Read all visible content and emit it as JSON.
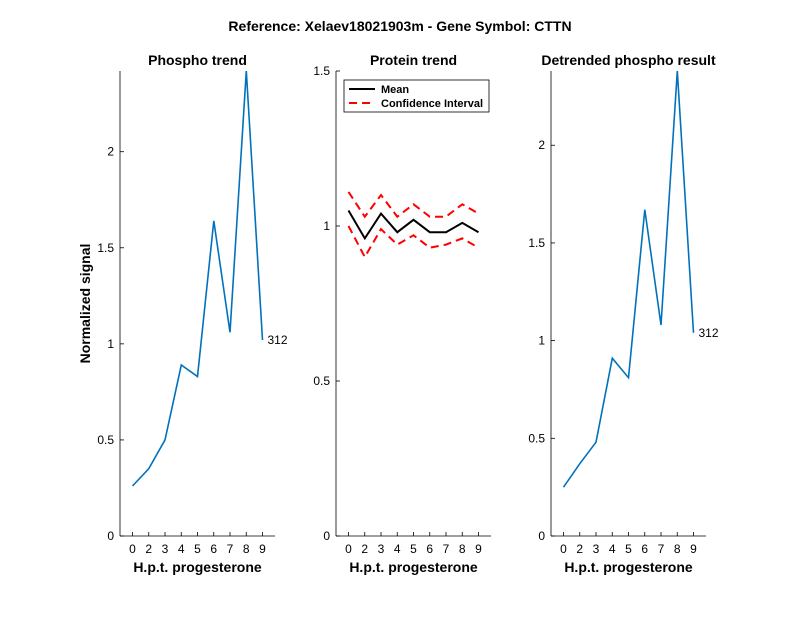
{
  "figure": {
    "suptitle": "Reference:  Xelaev18021903m - Gene Symbol:  CTTN"
  },
  "chart_data": [
    {
      "type": "line",
      "title": "Phospho trend",
      "xlabel": "H.p.t. progesterone",
      "ylabel": "Normalized signal",
      "categories": [
        "0",
        "2",
        "3",
        "4",
        "5",
        "6",
        "7",
        "8",
        "9"
      ],
      "ylim": [
        0,
        2.42
      ],
      "yticks": [
        0,
        0.5,
        1,
        1.5,
        2
      ],
      "ytick_labels": [
        "0",
        "0.5",
        "1",
        "1.5",
        "2"
      ],
      "series": [
        {
          "name": "312",
          "color": "#0072BD",
          "values": [
            0.26,
            0.35,
            0.5,
            0.89,
            0.83,
            1.64,
            1.06,
            2.42,
            1.02
          ]
        }
      ],
      "annotation": "312"
    },
    {
      "type": "line",
      "title": "Protein trend",
      "xlabel": "H.p.t. progesterone",
      "ylabel": "",
      "categories": [
        "0",
        "2",
        "3",
        "4",
        "5",
        "6",
        "7",
        "8",
        "9"
      ],
      "ylim": [
        0,
        1.5
      ],
      "yticks": [
        0,
        0.5,
        1,
        1.5
      ],
      "ytick_labels": [
        "0",
        "0.5",
        "1",
        "1.5"
      ],
      "series": [
        {
          "name": "Mean",
          "color": "#000000",
          "dash": "solid",
          "values": [
            1.05,
            0.96,
            1.04,
            0.98,
            1.02,
            0.98,
            0.98,
            1.01,
            0.98
          ]
        },
        {
          "name": "Confidence Interval",
          "color": "#FF0000",
          "dash": "dashed",
          "values": [
            1.11,
            1.03,
            1.1,
            1.03,
            1.07,
            1.03,
            1.03,
            1.07,
            1.04
          ]
        },
        {
          "name": "",
          "color": "#FF0000",
          "dash": "dashed",
          "values": [
            1.0,
            0.9,
            0.99,
            0.94,
            0.97,
            0.93,
            0.94,
            0.96,
            0.93
          ]
        }
      ],
      "legend": {
        "position": "top-left",
        "entries": [
          "Mean",
          "Confidence Interval"
        ]
      }
    },
    {
      "type": "line",
      "title": "Detrended phospho result",
      "xlabel": "H.p.t. progesterone",
      "ylabel": "",
      "categories": [
        "0",
        "2",
        "3",
        "4",
        "5",
        "6",
        "7",
        "8",
        "9"
      ],
      "ylim": [
        0,
        2.38
      ],
      "yticks": [
        0,
        0.5,
        1,
        1.5,
        2
      ],
      "ytick_labels": [
        "0",
        "0.5",
        "1",
        "1.5",
        "2"
      ],
      "series": [
        {
          "name": "312",
          "color": "#0072BD",
          "values": [
            0.25,
            0.37,
            0.48,
            0.91,
            0.81,
            1.67,
            1.08,
            2.38,
            1.04
          ]
        }
      ],
      "annotation": "312"
    }
  ]
}
